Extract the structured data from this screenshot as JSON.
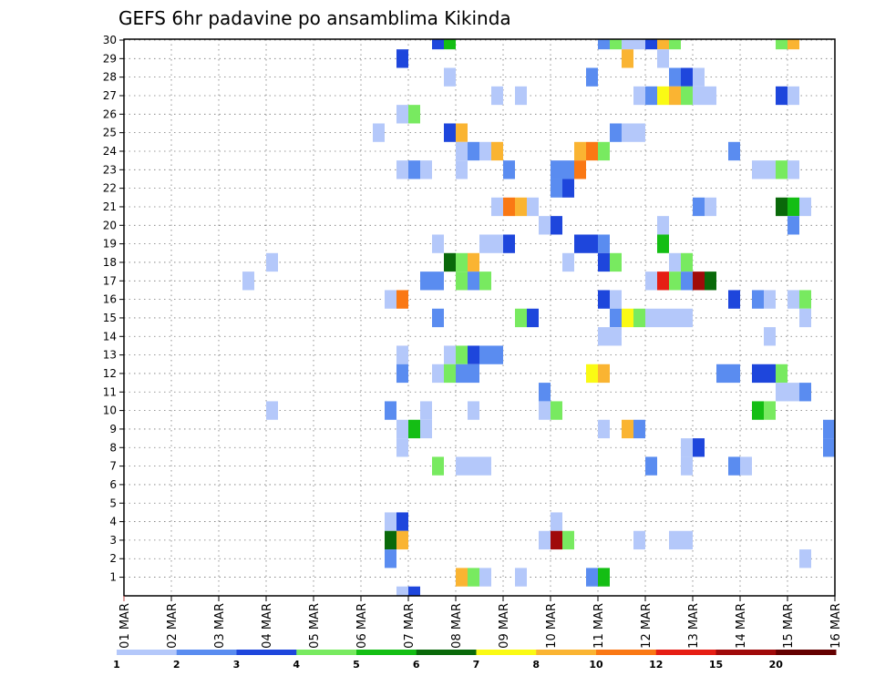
{
  "chart_data": {
    "type": "heatmap",
    "title": "GEFS 6hr padavine po ansamblima Kikinda",
    "xlabel": "",
    "ylabel": "",
    "x_tick_labels": [
      "01 MAR",
      "02 MAR",
      "03 MAR",
      "04 MAR",
      "05 MAR",
      "06 MAR",
      "07 MAR",
      "08 MAR",
      "09 MAR",
      "10 MAR",
      "11 MAR",
      "12 MAR",
      "13 MAR",
      "14 MAR",
      "15 MAR",
      "16 MAR"
    ],
    "y_tick_labels": [
      "1",
      "2",
      "3",
      "4",
      "5",
      "6",
      "7",
      "8",
      "9",
      "10",
      "11",
      "12",
      "13",
      "14",
      "15",
      "16",
      "17",
      "18",
      "19",
      "20",
      "21",
      "22",
      "23",
      "24",
      "25",
      "26",
      "27",
      "28",
      "29",
      "30"
    ],
    "x_range_days": [
      1,
      16
    ],
    "time_step_hours": 6,
    "members_range": [
      1,
      30
    ],
    "grid": true,
    "legend_position": "bottom",
    "legend": {
      "boundaries": [
        "1",
        "2",
        "3",
        "4",
        "5",
        "6",
        "7",
        "8",
        "10",
        "12",
        "15",
        "20"
      ],
      "colors": [
        "#b4c8fa",
        "#5a8cf0",
        "#1e46dc",
        "#78ea60",
        "#14be14",
        "#0a690a",
        "#fafa14",
        "#fab432",
        "#fa7814",
        "#e61e14",
        "#a00a0a",
        "#640000"
      ]
    },
    "cells": [
      {
        "member": 30,
        "day": 7.5,
        "lvl": 2
      },
      {
        "member": 30,
        "day": 7.75,
        "lvl": 4
      },
      {
        "member": 30,
        "day": 11,
        "lvl": 1
      },
      {
        "member": 30,
        "day": 11.25,
        "lvl": 3
      },
      {
        "member": 30,
        "day": 11.5,
        "lvl": 0
      },
      {
        "member": 30,
        "day": 11.75,
        "lvl": 0
      },
      {
        "member": 30,
        "day": 12,
        "lvl": 2
      },
      {
        "member": 30,
        "day": 12.25,
        "lvl": 7
      },
      {
        "member": 30,
        "day": 12.5,
        "lvl": 3
      },
      {
        "member": 30,
        "day": 14.75,
        "lvl": 3
      },
      {
        "member": 30,
        "day": 15,
        "lvl": 7
      },
      {
        "member": 29,
        "day": 6.75,
        "lvl": 2
      },
      {
        "member": 29,
        "day": 11.5,
        "lvl": 7
      },
      {
        "member": 29,
        "day": 12.25,
        "lvl": 0
      },
      {
        "member": 28,
        "day": 7.75,
        "lvl": 0
      },
      {
        "member": 28,
        "day": 10.75,
        "lvl": 1
      },
      {
        "member": 28,
        "day": 12.5,
        "lvl": 1
      },
      {
        "member": 28,
        "day": 12.75,
        "lvl": 2
      },
      {
        "member": 28,
        "day": 13,
        "lvl": 0
      },
      {
        "member": 27,
        "day": 8.75,
        "lvl": 0
      },
      {
        "member": 27,
        "day": 9.25,
        "lvl": 0
      },
      {
        "member": 27,
        "day": 11.75,
        "lvl": 0
      },
      {
        "member": 27,
        "day": 12,
        "lvl": 1
      },
      {
        "member": 27,
        "day": 12.25,
        "lvl": 6
      },
      {
        "member": 27,
        "day": 12.5,
        "lvl": 7
      },
      {
        "member": 27,
        "day": 12.75,
        "lvl": 3
      },
      {
        "member": 27,
        "day": 13,
        "lvl": 0
      },
      {
        "member": 27,
        "day": 13.25,
        "lvl": 0
      },
      {
        "member": 27,
        "day": 14.75,
        "lvl": 2
      },
      {
        "member": 27,
        "day": 15,
        "lvl": 0
      },
      {
        "member": 26,
        "day": 6.75,
        "lvl": 0
      },
      {
        "member": 26,
        "day": 7,
        "lvl": 3
      },
      {
        "member": 25,
        "day": 6.25,
        "lvl": 0
      },
      {
        "member": 25,
        "day": 7.75,
        "lvl": 2
      },
      {
        "member": 25,
        "day": 8,
        "lvl": 7
      },
      {
        "member": 25,
        "day": 11.25,
        "lvl": 1
      },
      {
        "member": 25,
        "day": 11.5,
        "lvl": 0
      },
      {
        "member": 25,
        "day": 11.75,
        "lvl": 0
      },
      {
        "member": 24,
        "day": 8,
        "lvl": 0
      },
      {
        "member": 24,
        "day": 8.25,
        "lvl": 1
      },
      {
        "member": 24,
        "day": 8.5,
        "lvl": 0
      },
      {
        "member": 24,
        "day": 8.75,
        "lvl": 7
      },
      {
        "member": 24,
        "day": 10.5,
        "lvl": 7
      },
      {
        "member": 24,
        "day": 10.75,
        "lvl": 8
      },
      {
        "member": 24,
        "day": 11,
        "lvl": 3
      },
      {
        "member": 24,
        "day": 13.75,
        "lvl": 1
      },
      {
        "member": 23,
        "day": 6.75,
        "lvl": 0
      },
      {
        "member": 23,
        "day": 7,
        "lvl": 1
      },
      {
        "member": 23,
        "day": 7.25,
        "lvl": 0
      },
      {
        "member": 23,
        "day": 8,
        "lvl": 0
      },
      {
        "member": 23,
        "day": 9,
        "lvl": 1
      },
      {
        "member": 23,
        "day": 10,
        "lvl": 1
      },
      {
        "member": 23,
        "day": 10.25,
        "lvl": 1
      },
      {
        "member": 23,
        "day": 10.5,
        "lvl": 8
      },
      {
        "member": 23,
        "day": 14.25,
        "lvl": 0
      },
      {
        "member": 23,
        "day": 14.5,
        "lvl": 0
      },
      {
        "member": 23,
        "day": 14.75,
        "lvl": 3
      },
      {
        "member": 23,
        "day": 15,
        "lvl": 0
      },
      {
        "member": 22,
        "day": 10,
        "lvl": 1
      },
      {
        "member": 22,
        "day": 10.25,
        "lvl": 2
      },
      {
        "member": 21,
        "day": 8.75,
        "lvl": 0
      },
      {
        "member": 21,
        "day": 9,
        "lvl": 8
      },
      {
        "member": 21,
        "day": 9.25,
        "lvl": 7
      },
      {
        "member": 21,
        "day": 9.5,
        "lvl": 0
      },
      {
        "member": 21,
        "day": 13,
        "lvl": 1
      },
      {
        "member": 21,
        "day": 13.25,
        "lvl": 0
      },
      {
        "member": 21,
        "day": 14.75,
        "lvl": 5
      },
      {
        "member": 21,
        "day": 15,
        "lvl": 4
      },
      {
        "member": 21,
        "day": 15.25,
        "lvl": 0
      },
      {
        "member": 20,
        "day": 9.75,
        "lvl": 0
      },
      {
        "member": 20,
        "day": 10,
        "lvl": 2
      },
      {
        "member": 20,
        "day": 12.25,
        "lvl": 0
      },
      {
        "member": 20,
        "day": 15,
        "lvl": 1
      },
      {
        "member": 19,
        "day": 7.5,
        "lvl": 0
      },
      {
        "member": 19,
        "day": 8.5,
        "lvl": 0
      },
      {
        "member": 19,
        "day": 8.75,
        "lvl": 0
      },
      {
        "member": 19,
        "day": 9,
        "lvl": 2
      },
      {
        "member": 19,
        "day": 10.5,
        "lvl": 2
      },
      {
        "member": 19,
        "day": 10.75,
        "lvl": 2
      },
      {
        "member": 19,
        "day": 11,
        "lvl": 1
      },
      {
        "member": 19,
        "day": 12.25,
        "lvl": 4
      },
      {
        "member": 18,
        "day": 4,
        "lvl": 0
      },
      {
        "member": 18,
        "day": 7.75,
        "lvl": 5
      },
      {
        "member": 18,
        "day": 8,
        "lvl": 3
      },
      {
        "member": 18,
        "day": 8.25,
        "lvl": 7
      },
      {
        "member": 18,
        "day": 10.25,
        "lvl": 0
      },
      {
        "member": 18,
        "day": 11,
        "lvl": 2
      },
      {
        "member": 18,
        "day": 11.25,
        "lvl": 3
      },
      {
        "member": 18,
        "day": 12.5,
        "lvl": 0
      },
      {
        "member": 18,
        "day": 12.75,
        "lvl": 3
      },
      {
        "member": 17,
        "day": 3.5,
        "lvl": 0
      },
      {
        "member": 17,
        "day": 7.25,
        "lvl": 1
      },
      {
        "member": 17,
        "day": 7.5,
        "lvl": 1
      },
      {
        "member": 17,
        "day": 8,
        "lvl": 3
      },
      {
        "member": 17,
        "day": 8.25,
        "lvl": 1
      },
      {
        "member": 17,
        "day": 8.5,
        "lvl": 3
      },
      {
        "member": 17,
        "day": 12,
        "lvl": 0
      },
      {
        "member": 17,
        "day": 12.25,
        "lvl": 9
      },
      {
        "member": 17,
        "day": 12.5,
        "lvl": 3
      },
      {
        "member": 17,
        "day": 12.75,
        "lvl": 1
      },
      {
        "member": 17,
        "day": 13,
        "lvl": 10
      },
      {
        "member": 17,
        "day": 13.25,
        "lvl": 5
      },
      {
        "member": 16,
        "day": 6.5,
        "lvl": 0
      },
      {
        "member": 16,
        "day": 6.75,
        "lvl": 8
      },
      {
        "member": 16,
        "day": 11,
        "lvl": 2
      },
      {
        "member": 16,
        "day": 11.25,
        "lvl": 0
      },
      {
        "member": 16,
        "day": 13.75,
        "lvl": 2
      },
      {
        "member": 16,
        "day": 14.25,
        "lvl": 1
      },
      {
        "member": 16,
        "day": 14.5,
        "lvl": 0
      },
      {
        "member": 16,
        "day": 15,
        "lvl": 0
      },
      {
        "member": 16,
        "day": 15.25,
        "lvl": 3
      },
      {
        "member": 15,
        "day": 7.5,
        "lvl": 1
      },
      {
        "member": 15,
        "day": 9.25,
        "lvl": 3
      },
      {
        "member": 15,
        "day": 9.5,
        "lvl": 2
      },
      {
        "member": 15,
        "day": 11.25,
        "lvl": 1
      },
      {
        "member": 15,
        "day": 11.5,
        "lvl": 6
      },
      {
        "member": 15,
        "day": 11.75,
        "lvl": 3
      },
      {
        "member": 15,
        "day": 12,
        "lvl": 0
      },
      {
        "member": 15,
        "day": 12.25,
        "lvl": 0
      },
      {
        "member": 15,
        "day": 12.5,
        "lvl": 0
      },
      {
        "member": 15,
        "day": 12.75,
        "lvl": 0
      },
      {
        "member": 15,
        "day": 15.25,
        "lvl": 0
      },
      {
        "member": 14,
        "day": 11,
        "lvl": 0
      },
      {
        "member": 14,
        "day": 11.25,
        "lvl": 0
      },
      {
        "member": 14,
        "day": 14.5,
        "lvl": 0
      },
      {
        "member": 13,
        "day": 6.75,
        "lvl": 0
      },
      {
        "member": 13,
        "day": 7.75,
        "lvl": 0
      },
      {
        "member": 13,
        "day": 8,
        "lvl": 3
      },
      {
        "member": 13,
        "day": 8.25,
        "lvl": 2
      },
      {
        "member": 13,
        "day": 8.5,
        "lvl": 1
      },
      {
        "member": 13,
        "day": 8.75,
        "lvl": 1
      },
      {
        "member": 12,
        "day": 6.75,
        "lvl": 1
      },
      {
        "member": 12,
        "day": 7.5,
        "lvl": 0
      },
      {
        "member": 12,
        "day": 7.75,
        "lvl": 3
      },
      {
        "member": 12,
        "day": 8,
        "lvl": 1
      },
      {
        "member": 12,
        "day": 8.25,
        "lvl": 1
      },
      {
        "member": 12,
        "day": 10.75,
        "lvl": 6
      },
      {
        "member": 12,
        "day": 11,
        "lvl": 7
      },
      {
        "member": 12,
        "day": 13.5,
        "lvl": 1
      },
      {
        "member": 12,
        "day": 13.75,
        "lvl": 1
      },
      {
        "member": 12,
        "day": 14.25,
        "lvl": 2
      },
      {
        "member": 12,
        "day": 14.5,
        "lvl": 2
      },
      {
        "member": 12,
        "day": 14.75,
        "lvl": 3
      },
      {
        "member": 11,
        "day": 9.75,
        "lvl": 1
      },
      {
        "member": 11,
        "day": 14.75,
        "lvl": 0
      },
      {
        "member": 11,
        "day": 15,
        "lvl": 0
      },
      {
        "member": 11,
        "day": 15.25,
        "lvl": 1
      },
      {
        "member": 10,
        "day": 4,
        "lvl": 0
      },
      {
        "member": 10,
        "day": 6.5,
        "lvl": 1
      },
      {
        "member": 10,
        "day": 7.25,
        "lvl": 0
      },
      {
        "member": 10,
        "day": 8.25,
        "lvl": 0
      },
      {
        "member": 10,
        "day": 9.75,
        "lvl": 0
      },
      {
        "member": 10,
        "day": 10,
        "lvl": 3
      },
      {
        "member": 10,
        "day": 14.25,
        "lvl": 4
      },
      {
        "member": 10,
        "day": 14.5,
        "lvl": 3
      },
      {
        "member": 9,
        "day": 6.75,
        "lvl": 0
      },
      {
        "member": 9,
        "day": 7,
        "lvl": 4
      },
      {
        "member": 9,
        "day": 7.25,
        "lvl": 0
      },
      {
        "member": 9,
        "day": 11,
        "lvl": 0
      },
      {
        "member": 9,
        "day": 11.5,
        "lvl": 7
      },
      {
        "member": 9,
        "day": 11.75,
        "lvl": 1
      },
      {
        "member": 9,
        "day": 15.75,
        "lvl": 1
      },
      {
        "member": 8,
        "day": 6.75,
        "lvl": 0
      },
      {
        "member": 8,
        "day": 12.75,
        "lvl": 0
      },
      {
        "member": 8,
        "day": 13,
        "lvl": 2
      },
      {
        "member": 8,
        "day": 15.75,
        "lvl": 1
      },
      {
        "member": 7,
        "day": 7.5,
        "lvl": 3
      },
      {
        "member": 7,
        "day": 8,
        "lvl": 0
      },
      {
        "member": 7,
        "day": 8.25,
        "lvl": 0
      },
      {
        "member": 7,
        "day": 8.5,
        "lvl": 0
      },
      {
        "member": 7,
        "day": 12,
        "lvl": 1
      },
      {
        "member": 7,
        "day": 12.75,
        "lvl": 0
      },
      {
        "member": 7,
        "day": 13.75,
        "lvl": 1
      },
      {
        "member": 7,
        "day": 14,
        "lvl": 0
      },
      {
        "member": 4,
        "day": 6.5,
        "lvl": 0
      },
      {
        "member": 4,
        "day": 6.75,
        "lvl": 2
      },
      {
        "member": 4,
        "day": 10,
        "lvl": 0
      },
      {
        "member": 3,
        "day": 6.5,
        "lvl": 5
      },
      {
        "member": 3,
        "day": 6.75,
        "lvl": 7
      },
      {
        "member": 3,
        "day": 9.75,
        "lvl": 0
      },
      {
        "member": 3,
        "day": 10,
        "lvl": 10
      },
      {
        "member": 3,
        "day": 10.25,
        "lvl": 3
      },
      {
        "member": 3,
        "day": 11.75,
        "lvl": 0
      },
      {
        "member": 3,
        "day": 12.5,
        "lvl": 0
      },
      {
        "member": 3,
        "day": 12.75,
        "lvl": 0
      },
      {
        "member": 2,
        "day": 6.5,
        "lvl": 1
      },
      {
        "member": 2,
        "day": 15.25,
        "lvl": 0
      },
      {
        "member": 1,
        "day": 8,
        "lvl": 7
      },
      {
        "member": 1,
        "day": 8.25,
        "lvl": 3
      },
      {
        "member": 1,
        "day": 8.5,
        "lvl": 0
      },
      {
        "member": 1,
        "day": 9.25,
        "lvl": 0
      },
      {
        "member": 1,
        "day": 10.75,
        "lvl": 1
      },
      {
        "member": 1,
        "day": 11,
        "lvl": 4
      },
      {
        "member": 0,
        "day": 6.75,
        "lvl": 0
      },
      {
        "member": 0,
        "day": 7,
        "lvl": 2
      }
    ]
  }
}
